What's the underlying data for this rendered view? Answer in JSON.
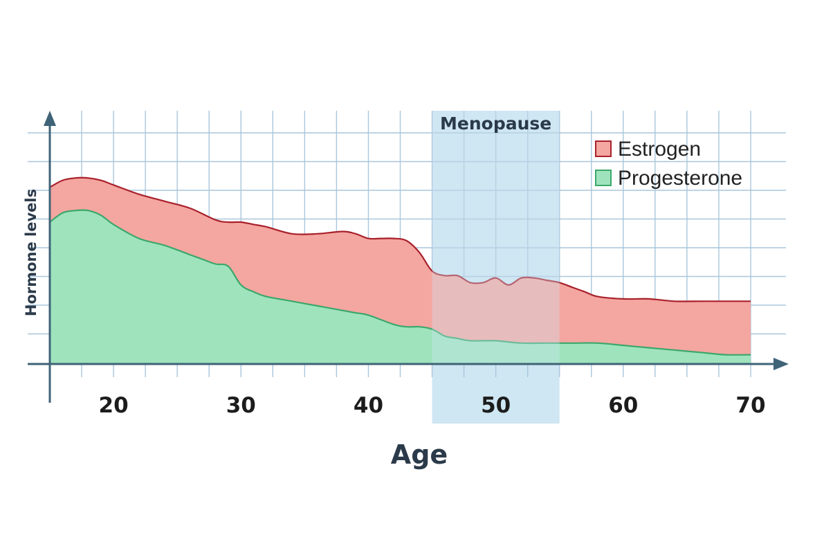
{
  "chart_data": {
    "type": "area",
    "title": "",
    "xlabel": "Age",
    "ylabel": "Hormone levels",
    "xlim": [
      15,
      70
    ],
    "ylim": [
      0,
      100
    ],
    "x_ticks": [
      20,
      30,
      40,
      50,
      60,
      70
    ],
    "grid": true,
    "legend_position": "top-right",
    "y_tick_labels_shown": false,
    "shaded_region": {
      "label": "Menopause",
      "x_start": 45,
      "x_end": 55,
      "color": "#cfe6f3"
    },
    "series": [
      {
        "name": "Estrogen",
        "color": "#f4a6a0",
        "line_color": "#a8202a",
        "x": [
          15,
          16,
          17,
          18,
          19,
          20,
          22,
          24,
          26,
          28,
          29,
          30,
          31,
          32,
          34,
          36,
          38,
          39,
          40,
          41,
          42,
          43,
          44,
          45,
          46,
          47,
          48,
          49,
          50,
          51,
          52,
          53,
          54,
          55,
          56,
          57,
          58,
          60,
          62,
          64,
          66,
          68,
          70
        ],
        "values": [
          76,
          79,
          80,
          80,
          79,
          77,
          73,
          70,
          67,
          62,
          61,
          61,
          60,
          59,
          56,
          56,
          57,
          56,
          54,
          54,
          54,
          53,
          48,
          40,
          38,
          38,
          35,
          35,
          37,
          34,
          37,
          37,
          36,
          35,
          33,
          31,
          29,
          28,
          28,
          27,
          27,
          27,
          27
        ]
      },
      {
        "name": "Progesterone",
        "color": "#9fe3bd",
        "line_color": "#3aa86b",
        "x": [
          15,
          16,
          17,
          18,
          19,
          20,
          22,
          24,
          26,
          27,
          28,
          29,
          30,
          31,
          32,
          34,
          36,
          38,
          39,
          40,
          42,
          43,
          44,
          45,
          46,
          47,
          48,
          50,
          52,
          54,
          56,
          58,
          60,
          62,
          64,
          66,
          68,
          70
        ],
        "values": [
          61,
          65,
          66,
          66,
          64,
          60,
          54,
          51,
          47,
          45,
          43,
          42,
          34,
          31,
          29,
          27,
          25,
          23,
          22,
          21,
          17,
          16,
          16,
          15,
          12,
          11,
          10,
          10,
          9,
          9,
          9,
          9,
          8,
          7,
          6,
          5,
          4,
          4
        ]
      }
    ]
  }
}
